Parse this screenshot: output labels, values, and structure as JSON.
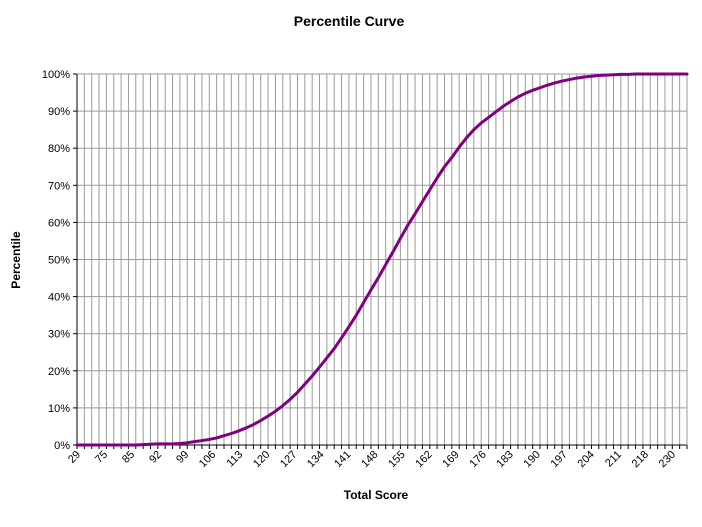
{
  "chart_data": {
    "type": "line",
    "title": "Percentile Curve",
    "xlabel": "Total Score",
    "ylabel": "Percentile",
    "x_tick_labels": [
      "29",
      "75",
      "85",
      "92",
      "99",
      "106",
      "113",
      "120",
      "127",
      "134",
      "141",
      "148",
      "155",
      "162",
      "169",
      "176",
      "183",
      "190",
      "197",
      "204",
      "211",
      "218",
      "230"
    ],
    "y_tick_labels": [
      "0%",
      "10%",
      "20%",
      "30%",
      "40%",
      "50%",
      "60%",
      "70%",
      "80%",
      "90%",
      "100%"
    ],
    "ylim": [
      0,
      100
    ],
    "grid": true,
    "legend": "none",
    "series": [
      {
        "color": "#800080",
        "values": [
          0,
          0,
          0,
          0,
          0,
          0,
          0,
          0,
          0,
          0.1,
          0.2,
          0.3,
          0.3,
          0.3,
          0.4,
          0.6,
          0.9,
          1.2,
          1.5,
          1.9,
          2.5,
          3.1,
          3.8,
          4.6,
          5.5,
          6.6,
          7.8,
          9.1,
          10.6,
          12.3,
          14.2,
          16.4,
          18.6,
          21.0,
          23.5,
          26.0,
          28.9,
          31.9,
          35.0,
          38.4,
          41.8,
          45.1,
          48.6,
          52.1,
          55.7,
          59.2,
          62.3,
          65.6,
          68.8,
          72.0,
          75.0,
          77.5,
          80.3,
          82.8,
          85.0,
          86.8,
          88.3,
          89.8,
          91.3,
          92.6,
          93.8,
          94.8,
          95.6,
          96.3,
          97.0,
          97.6,
          98.1,
          98.5,
          98.9,
          99.2,
          99.4,
          99.6,
          99.7,
          99.8,
          99.9,
          99.9,
          100,
          100,
          100,
          100,
          100,
          100,
          100,
          100
        ]
      }
    ]
  }
}
